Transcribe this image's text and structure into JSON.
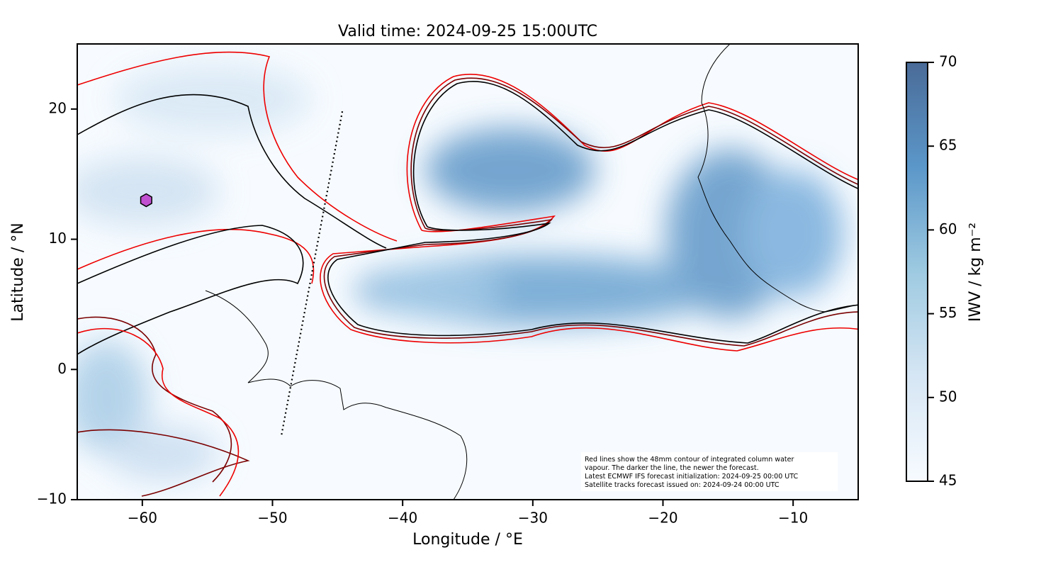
{
  "title": "Valid time: 2024-09-25 15:00UTC",
  "x_label": "Longitude / °E",
  "y_label": "Latitude / °N",
  "xlim": [
    -65,
    -5
  ],
  "ylim": [
    -10,
    25
  ],
  "xticks": [
    {
      "value": -60,
      "label": "−60"
    },
    {
      "value": -50,
      "label": "−50"
    },
    {
      "value": -40,
      "label": "−40"
    },
    {
      "value": -30,
      "label": "−30"
    },
    {
      "value": -20,
      "label": "−20"
    },
    {
      "value": -10,
      "label": "−10"
    }
  ],
  "yticks": [
    {
      "value": -10,
      "label": "−10"
    },
    0,
    10,
    20
  ],
  "marker": {
    "lon": -59.7,
    "lat": 13,
    "color": "#c050d0"
  },
  "track": {
    "lon": [
      -49.3,
      -44.6
    ],
    "lat": [
      -5,
      20
    ]
  },
  "colorbar": {
    "label": "IWV / kg m⁻²",
    "clim": [
      45,
      70
    ],
    "ticks": [
      45,
      50,
      55,
      60,
      65,
      70
    ]
  },
  "note": [
    "Red lines show the 48mm contour of integrated column water",
    "vapour. The darker the line, the newer the forecast.",
    "Latest ECMWF IFS forecast initialization: 2024-09-25 00:00 UTC",
    "Satellite tracks forecast issued on: 2024-09-24 00:00 UTC"
  ]
}
